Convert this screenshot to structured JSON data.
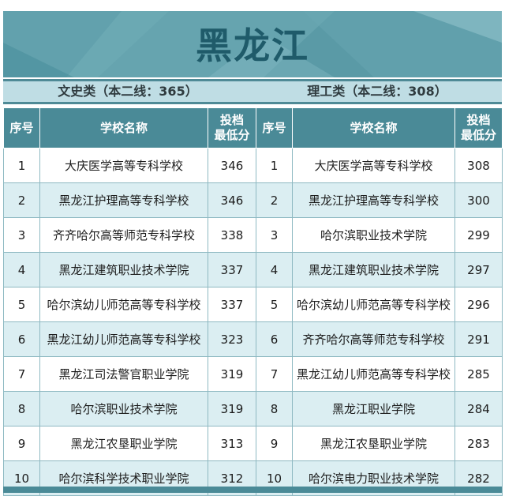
{
  "banner": {
    "title": "黑龙江"
  },
  "categories": {
    "left": "文史类（本二线：365）",
    "right": "理工类（本二线：308）"
  },
  "headers": {
    "no": "序号",
    "school": "学校名称",
    "score_line1": "投档",
    "score_line2": "最低分"
  },
  "rows": [
    {
      "no_l": "1",
      "name_l": "大庆医学高等专科学校",
      "score_l": "346",
      "no_r": "1",
      "name_r": "大庆医学高等专科学校",
      "score_r": "308"
    },
    {
      "no_l": "2",
      "name_l": "黑龙江护理高等专科学校",
      "score_l": "346",
      "no_r": "2",
      "name_r": "黑龙江护理高等专科学校",
      "score_r": "300"
    },
    {
      "no_l": "3",
      "name_l": "齐齐哈尔高等师范专科学校",
      "score_l": "338",
      "no_r": "3",
      "name_r": "哈尔滨职业技术学院",
      "score_r": "299"
    },
    {
      "no_l": "4",
      "name_l": "黑龙江建筑职业技术学院",
      "score_l": "337",
      "no_r": "4",
      "name_r": "黑龙江建筑职业技术学院",
      "score_r": "297"
    },
    {
      "no_l": "5",
      "name_l": "哈尔滨幼儿师范高等专科学校",
      "score_l": "337",
      "no_r": "5",
      "name_r": "哈尔滨幼儿师范高等专科学校",
      "score_r": "296"
    },
    {
      "no_l": "6",
      "name_l": "黑龙江幼儿师范高等专科学校",
      "score_l": "323",
      "no_r": "6",
      "name_r": "齐齐哈尔高等师范专科学校",
      "score_r": "291"
    },
    {
      "no_l": "7",
      "name_l": "黑龙江司法警官职业学院",
      "score_l": "319",
      "no_r": "7",
      "name_r": "黑龙江幼儿师范高等专科学校",
      "score_r": "285"
    },
    {
      "no_l": "8",
      "name_l": "哈尔滨职业技术学院",
      "score_l": "319",
      "no_r": "8",
      "name_r": "黑龙江职业学院",
      "score_r": "284"
    },
    {
      "no_l": "9",
      "name_l": "黑龙江农垦职业学院",
      "score_l": "313",
      "no_r": "9",
      "name_r": "黑龙江农垦职业学院",
      "score_r": "283"
    },
    {
      "no_l": "10",
      "name_l": "哈尔滨科学技术职业学院",
      "score_l": "312",
      "no_r": "10",
      "name_r": "哈尔滨电力职业技术学院",
      "score_r": "282"
    }
  ],
  "colors": {
    "header_bg": "#4a8a97",
    "banner_bg": "#5a9aa6",
    "title_text": "#1f5b6a",
    "stripe_row": "#dbeef2"
  }
}
